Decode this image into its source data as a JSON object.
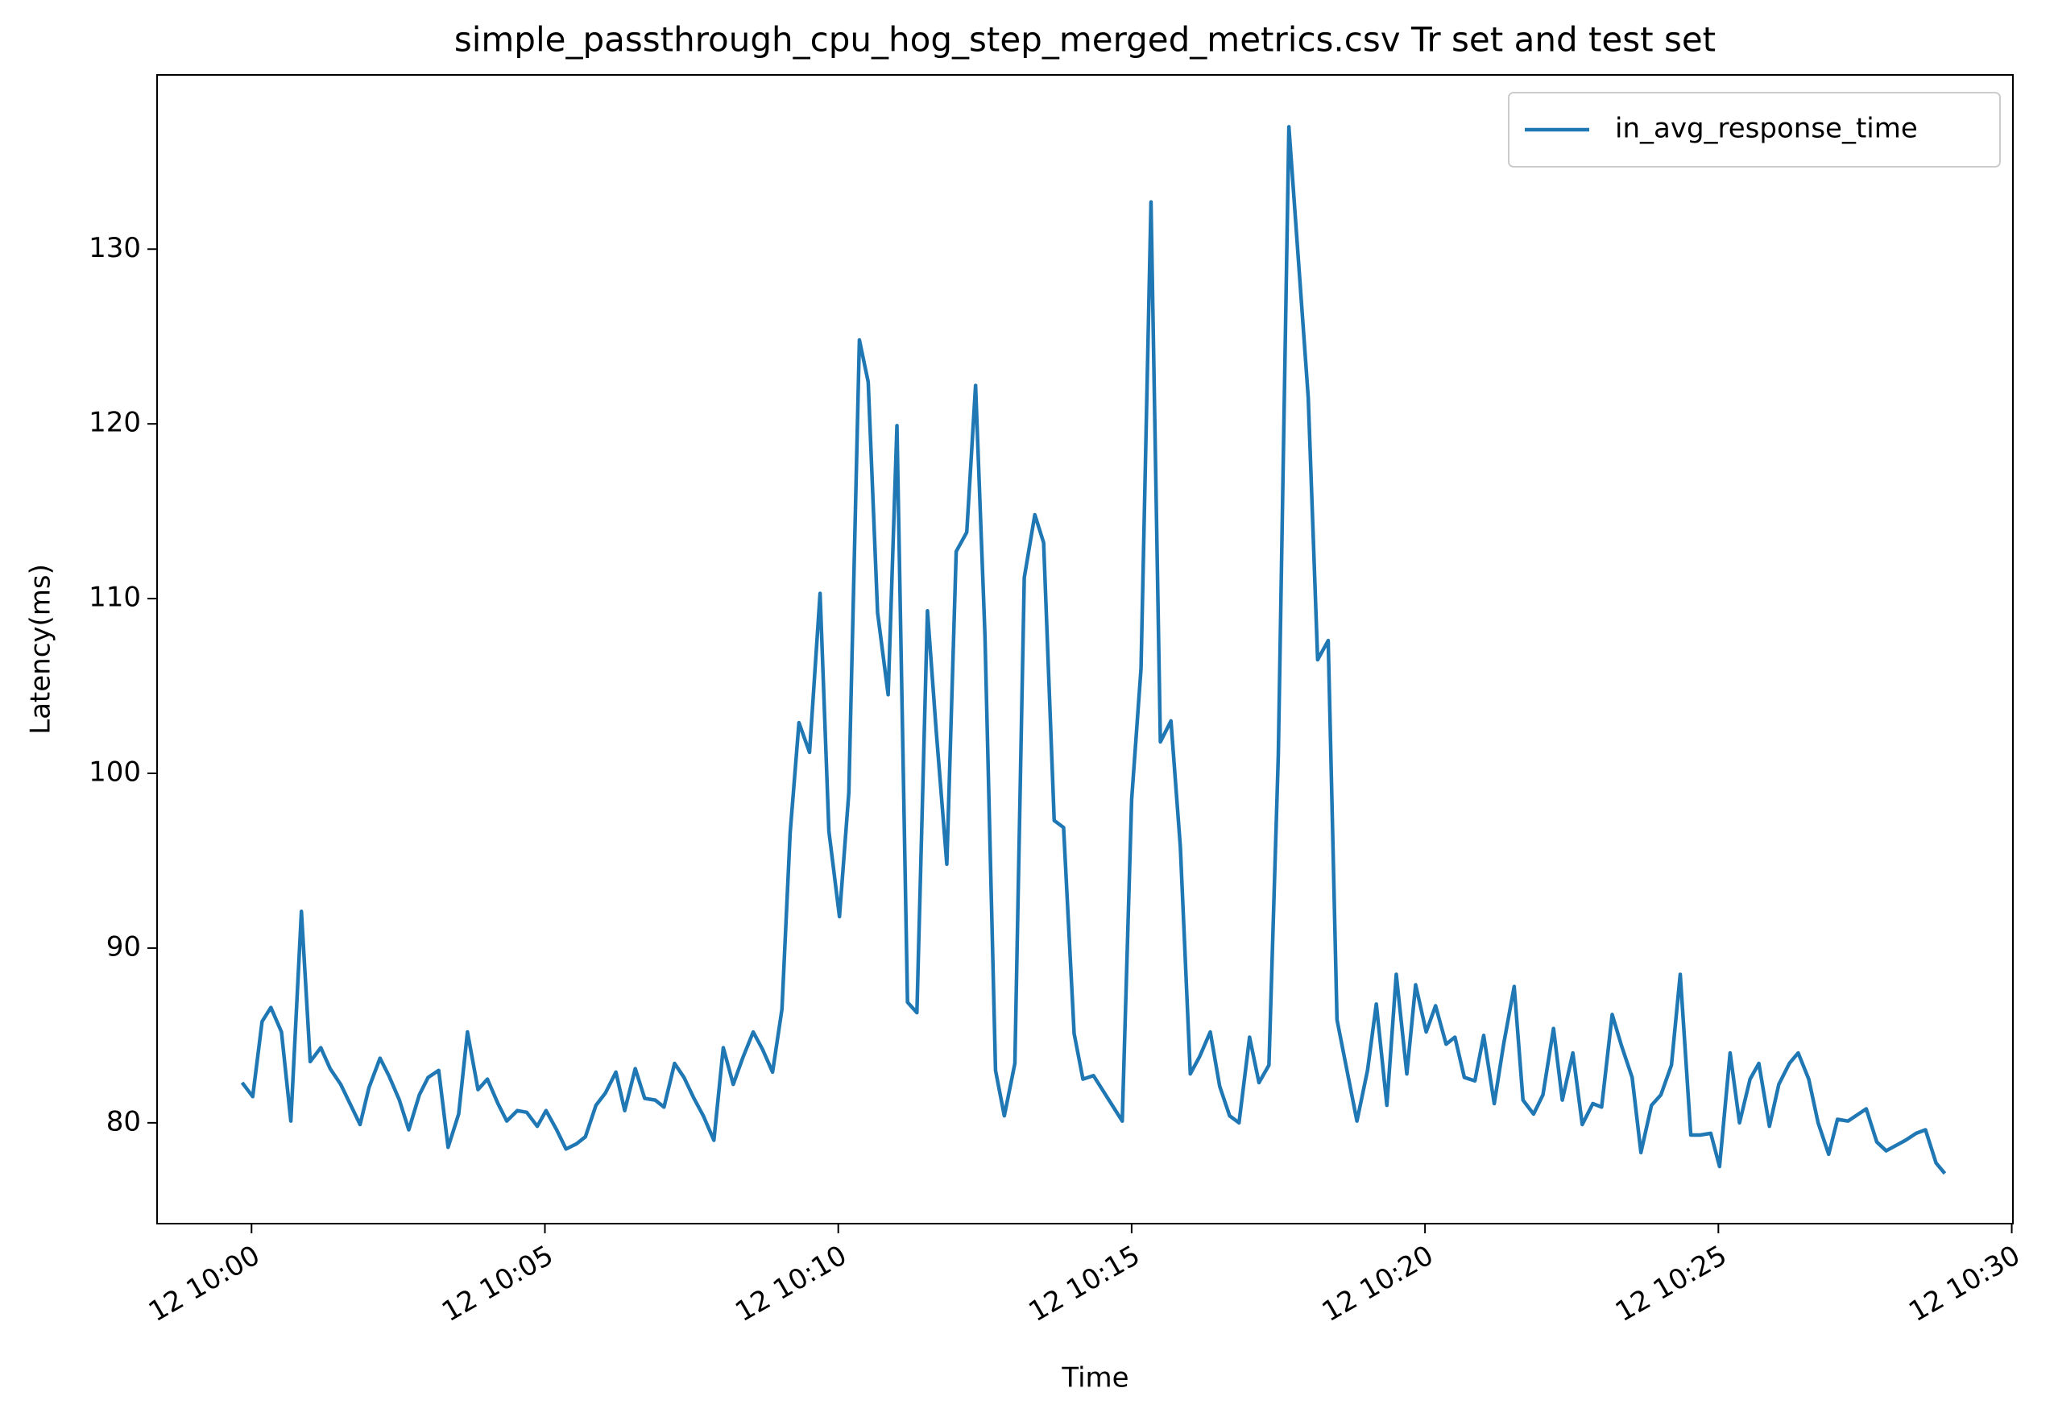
{
  "chart_data": {
    "type": "line",
    "title": "simple_passthrough_cpu_hog_step_merged_metrics.csv Tr set and test set",
    "x_label": "Time",
    "y_label": "Latency(ms)",
    "x": [
      -0.16,
      0.02,
      0.18,
      0.33,
      0.51,
      0.67,
      0.85,
      1.0,
      1.18,
      1.34,
      1.52,
      1.85,
      2.0,
      2.19,
      2.34,
      2.52,
      2.68,
      2.86,
      3.01,
      3.19,
      3.35,
      3.53,
      3.68,
      3.86,
      4.02,
      4.2,
      4.35,
      4.53,
      4.69,
      4.87,
      5.02,
      5.2,
      5.36,
      5.54,
      5.69,
      5.87,
      6.03,
      6.21,
      6.36,
      6.54,
      6.7,
      6.88,
      7.03,
      7.21,
      7.37,
      7.54,
      7.7,
      7.88,
      8.04,
      8.21,
      8.37,
      8.55,
      8.71,
      8.88,
      9.04,
      9.18,
      9.33,
      9.51,
      9.69,
      9.84,
      10.02,
      10.18,
      10.36,
      10.51,
      10.67,
      10.85,
      11.0,
      11.18,
      11.34,
      11.52,
      11.67,
      11.85,
      12.01,
      12.19,
      12.34,
      12.5,
      12.68,
      12.83,
      13.01,
      13.17,
      13.35,
      13.5,
      13.68,
      13.84,
      14.02,
      14.17,
      14.35,
      14.84,
      15.0,
      15.16,
      15.33,
      15.49,
      15.67,
      15.83,
      16.0,
      16.16,
      16.34,
      16.5,
      16.67,
      16.83,
      17.01,
      17.17,
      17.34,
      17.5,
      17.68,
      18.01,
      18.17,
      18.35,
      18.5,
      18.84,
      19.02,
      19.17,
      19.35,
      19.51,
      19.69,
      19.84,
      20.02,
      20.18,
      20.36,
      20.51,
      20.67,
      20.85,
      21.0,
      21.18,
      21.34,
      21.52,
      21.67,
      21.85,
      22.01,
      22.19,
      22.34,
      22.52,
      22.68,
      22.86,
      23.01,
      23.19,
      23.35,
      23.53,
      23.68,
      23.86,
      24.02,
      24.2,
      24.35,
      24.53,
      24.69,
      24.87,
      25.02,
      25.2,
      25.36,
      25.54,
      25.69,
      25.87,
      26.03,
      26.21,
      26.36,
      26.54,
      26.7,
      26.88,
      27.03,
      27.21,
      27.52,
      27.7,
      27.86,
      28.19,
      28.37,
      28.53,
      28.71,
      28.86
    ],
    "series": [
      {
        "name": "in_avg_response_time",
        "color": "#1f77b4",
        "values": [
          82.3,
          81.5,
          85.8,
          86.6,
          85.2,
          80.1,
          92.1,
          83.5,
          84.3,
          83.1,
          82.2,
          79.9,
          82.0,
          83.7,
          82.7,
          81.3,
          79.6,
          81.6,
          82.6,
          83.0,
          78.6,
          80.5,
          85.2,
          81.9,
          82.5,
          81.1,
          80.1,
          80.7,
          80.6,
          79.8,
          80.7,
          79.6,
          78.5,
          78.8,
          79.2,
          81.0,
          81.7,
          82.9,
          80.7,
          83.1,
          81.4,
          81.3,
          80.9,
          83.4,
          82.6,
          81.4,
          80.4,
          79.0,
          84.3,
          82.2,
          83.7,
          85.2,
          84.2,
          82.9,
          86.5,
          96.6,
          102.9,
          101.2,
          110.3,
          96.7,
          91.8,
          98.9,
          124.8,
          122.4,
          109.2,
          104.5,
          119.9,
          86.9,
          86.3,
          109.3,
          102.4,
          94.8,
          112.7,
          113.8,
          122.2,
          107.9,
          83.0,
          80.4,
          83.4,
          111.2,
          114.8,
          113.2,
          97.3,
          96.9,
          85.1,
          82.5,
          82.7,
          80.1,
          98.5,
          106.0,
          132.7,
          101.8,
          103.0,
          95.8,
          82.8,
          83.8,
          85.2,
          82.1,
          80.4,
          80.0,
          84.9,
          82.3,
          83.3,
          101.1,
          137.0,
          121.5,
          106.5,
          107.6,
          85.9,
          80.1,
          83.0,
          86.8,
          81.0,
          88.5,
          82.8,
          87.9,
          85.2,
          86.7,
          84.5,
          84.9,
          82.6,
          82.4,
          85.0,
          81.1,
          84.5,
          87.8,
          81.3,
          80.5,
          81.6,
          85.4,
          81.3,
          84.0,
          79.9,
          81.1,
          80.9,
          86.2,
          84.4,
          82.6,
          78.3,
          81.0,
          81.6,
          83.3,
          88.5,
          79.3,
          79.3,
          79.4,
          77.5,
          84.0,
          80.0,
          82.5,
          83.4,
          79.8,
          82.2,
          83.4,
          84.0,
          82.5,
          80.0,
          78.2,
          80.2,
          80.1,
          80.8,
          78.9,
          78.4,
          79.0,
          79.4,
          79.6,
          77.7,
          77.1
        ]
      }
    ],
    "xlim": [
      -1.61,
      30.02
    ],
    "ylim": [
      74.23,
      139.97
    ],
    "xticks": [
      {
        "value": 0,
        "label": "12 10:00"
      },
      {
        "value": 5,
        "label": "12 10:05"
      },
      {
        "value": 10,
        "label": "12 10:10"
      },
      {
        "value": 15,
        "label": "12 10:15"
      },
      {
        "value": 20,
        "label": "12 10:20"
      },
      {
        "value": 25,
        "label": "12 10:25"
      },
      {
        "value": 30,
        "label": "12 10:30"
      }
    ],
    "yticks": [
      80,
      90,
      100,
      110,
      120,
      130
    ],
    "grid": false,
    "legend": "upper-right"
  }
}
